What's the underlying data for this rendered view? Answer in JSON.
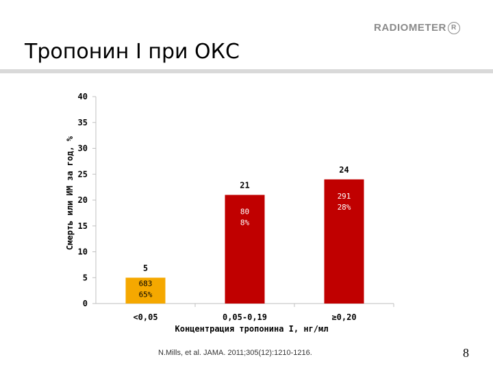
{
  "brand": {
    "name": "RADIOMETER",
    "mark": "R"
  },
  "slide": {
    "title": "Тропонин I при ОКС",
    "citation": "N.Mills, et al. JAMA. 2011;305(12):1210-1216.",
    "page_number": "8"
  },
  "chart_data": {
    "type": "bar",
    "categories": [
      "<0,05",
      "0,05-0,19",
      "≥0,20"
    ],
    "values": [
      5,
      21,
      24
    ],
    "value_labels": [
      "5",
      "21",
      "24"
    ],
    "inner_labels": [
      [
        "683",
        "65%"
      ],
      [
        "80",
        "8%"
      ],
      [
        "291",
        "28%"
      ]
    ],
    "bar_colors": [
      "#f5a800",
      "#c00000",
      "#c00000"
    ],
    "xlabel": "Концентрация тропонина I, нг/мл",
    "ylabel": "Смерть или ИМ за год, %",
    "ylim": [
      0,
      40
    ],
    "yticks": [
      "0",
      "5",
      "10",
      "15",
      "20",
      "25",
      "30",
      "35",
      "40"
    ],
    "grid": false,
    "legend": "none"
  }
}
